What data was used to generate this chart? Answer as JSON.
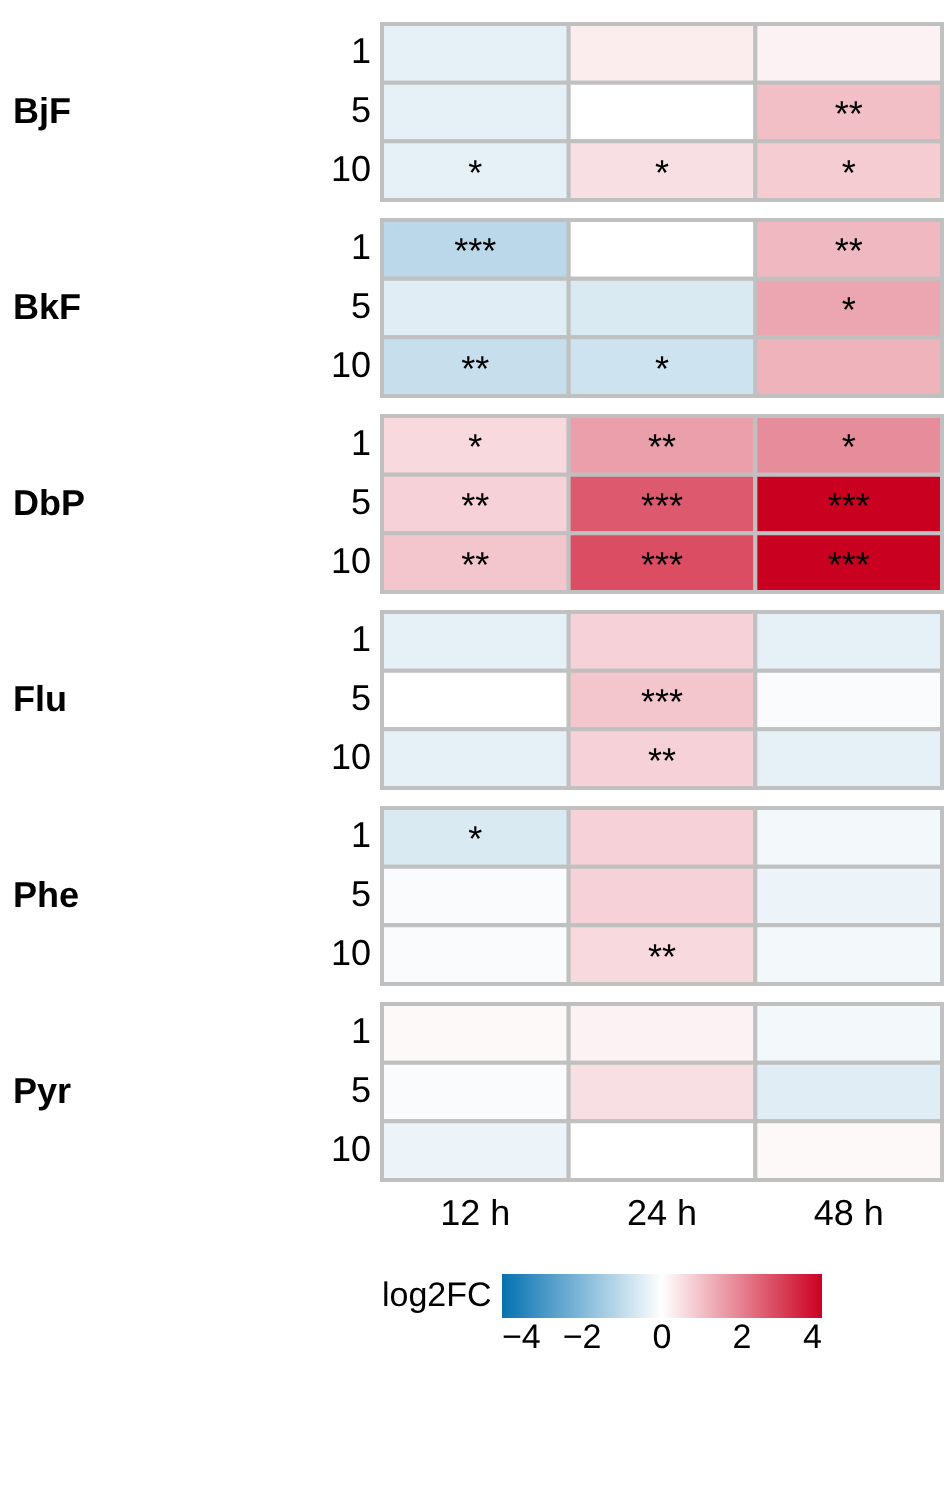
{
  "chart_data": {
    "type": "heatmap",
    "categories": [
      "12 h",
      "24 h",
      "48 h"
    ],
    "y_categories": [
      "1",
      "5",
      "10",
      "1",
      "5",
      "10",
      "1",
      "5",
      "10",
      "1",
      "5",
      "10",
      "1",
      "5",
      "10",
      "1",
      "5",
      "10"
    ],
    "annotations": [
      "BjF",
      "BkF",
      "DbP",
      "Flu",
      "Phe",
      "Pyr"
    ],
    "clim": [
      -4,
      4
    ],
    "clabel": "log2FC",
    "cticks": [
      -4,
      -2,
      0,
      2,
      4
    ],
    "cells": [
      [
        -0.4,
        0.3,
        0.2
      ],
      [
        -0.4,
        0.0,
        1.0
      ],
      [
        -0.4,
        0.5,
        0.8
      ],
      [
        -1.1,
        0.0,
        1.1
      ],
      [
        -0.5,
        -0.6,
        1.4
      ],
      [
        -0.9,
        -0.8,
        1.2
      ],
      [
        0.6,
        1.5,
        1.8
      ],
      [
        0.7,
        2.6,
        4.0
      ],
      [
        0.9,
        2.8,
        4.0
      ],
      [
        -0.4,
        0.7,
        -0.4
      ],
      [
        0.0,
        0.9,
        -0.1
      ],
      [
        -0.4,
        0.7,
        -0.4
      ],
      [
        -0.6,
        0.7,
        -0.2
      ],
      [
        -0.1,
        0.7,
        -0.3
      ],
      [
        -0.1,
        0.6,
        -0.2
      ],
      [
        0.1,
        0.2,
        -0.2
      ],
      [
        -0.1,
        0.5,
        -0.5
      ],
      [
        -0.3,
        0.0,
        0.1
      ]
    ],
    "cell_labels": [
      [
        null,
        null,
        null
      ],
      [
        null,
        null,
        "**"
      ],
      [
        "*",
        "*",
        "*"
      ],
      [
        "***",
        null,
        "**"
      ],
      [
        null,
        null,
        "*"
      ],
      [
        "**",
        "*",
        null
      ],
      [
        "*",
        "**",
        "*"
      ],
      [
        "**",
        "***",
        "***"
      ],
      [
        "**",
        "***",
        "***"
      ],
      [
        null,
        null,
        null
      ],
      [
        null,
        "***",
        null
      ],
      [
        null,
        "**",
        null
      ],
      [
        "*",
        null,
        null
      ],
      [
        null,
        null,
        null
      ],
      [
        null,
        "**",
        null
      ],
      [
        null,
        null,
        null
      ],
      [
        null,
        null,
        null
      ],
      [
        null,
        null,
        null
      ]
    ]
  }
}
